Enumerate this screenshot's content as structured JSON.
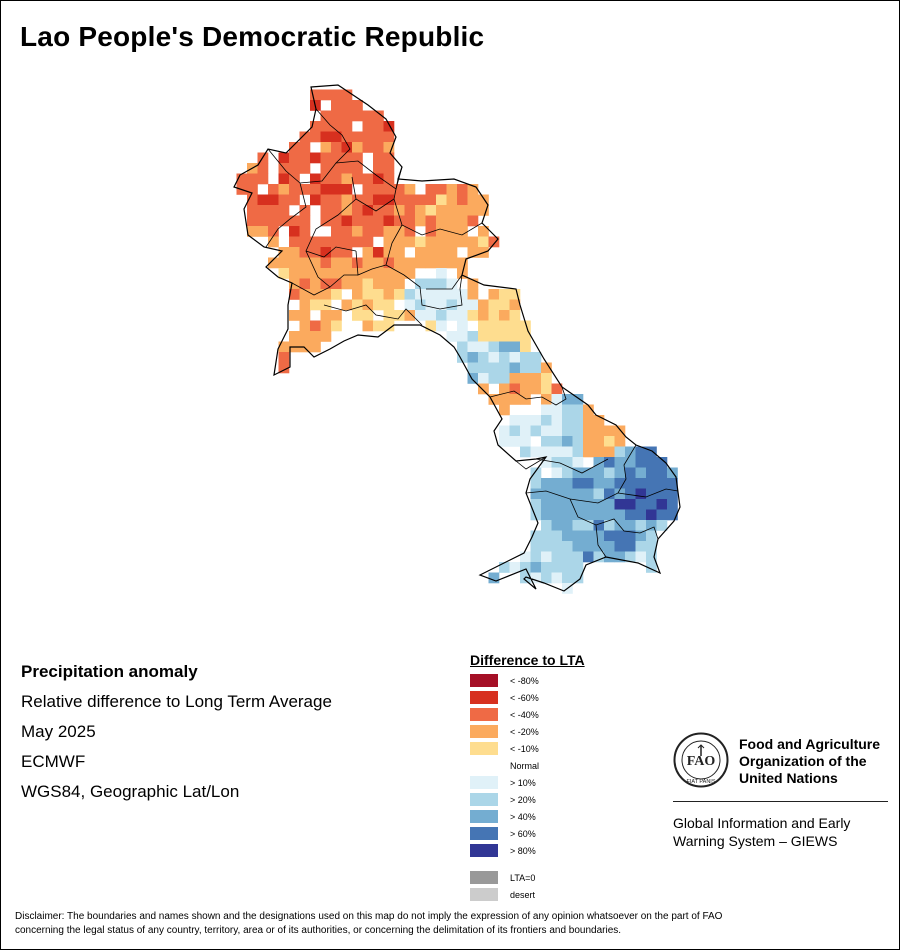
{
  "title": "Lao People's Democratic Republic",
  "info": {
    "heading": "Precipitation anomaly",
    "subtitle": "Relative difference to Long Term Average",
    "period": "May 2025",
    "source": "ECMWF",
    "projection": "WGS84, Geographic Lat/Lon"
  },
  "legend": {
    "title": "Difference to LTA",
    "items": [
      {
        "label": "< -80%",
        "color": "#a50f26"
      },
      {
        "label": "< -60%",
        "color": "#d7301f"
      },
      {
        "label": "< -40%",
        "color": "#ef6a45"
      },
      {
        "label": "< -20%",
        "color": "#fbaa5e"
      },
      {
        "label": "< -10%",
        "color": "#fedd8f"
      },
      {
        "label": "Normal",
        "color": "#ffffff"
      },
      {
        "label": "> 10%",
        "color": "#e0f1f8"
      },
      {
        "label": "> 20%",
        "color": "#abd6e8"
      },
      {
        "label": "> 40%",
        "color": "#74add1"
      },
      {
        "label": "> 60%",
        "color": "#4575b4"
      },
      {
        "label": "> 80%",
        "color": "#313695"
      }
    ],
    "extra": [
      {
        "label": "LTA=0",
        "color": "#999999"
      },
      {
        "label": "desert",
        "color": "#cccccc"
      }
    ]
  },
  "fao": {
    "name_line1": "Food and Agriculture",
    "name_line2": "Organization of the",
    "name_line3": "United Nations",
    "giews_line1": "Global Information and Early",
    "giews_line2": "Warning System – GIEWS",
    "logo_text": "FAO",
    "logo_motto": "FIAT PANIS"
  },
  "disclaimer_line1": "Disclaimer: The boundaries and names shown and the designations used on this map do not imply the expression of any opinion whatsoever on the part of FAO",
  "disclaimer_line2": "concerning the legal status of any country, territory, area or of its authorities, or concerning the delimitation of its frontiers and boundaries."
}
